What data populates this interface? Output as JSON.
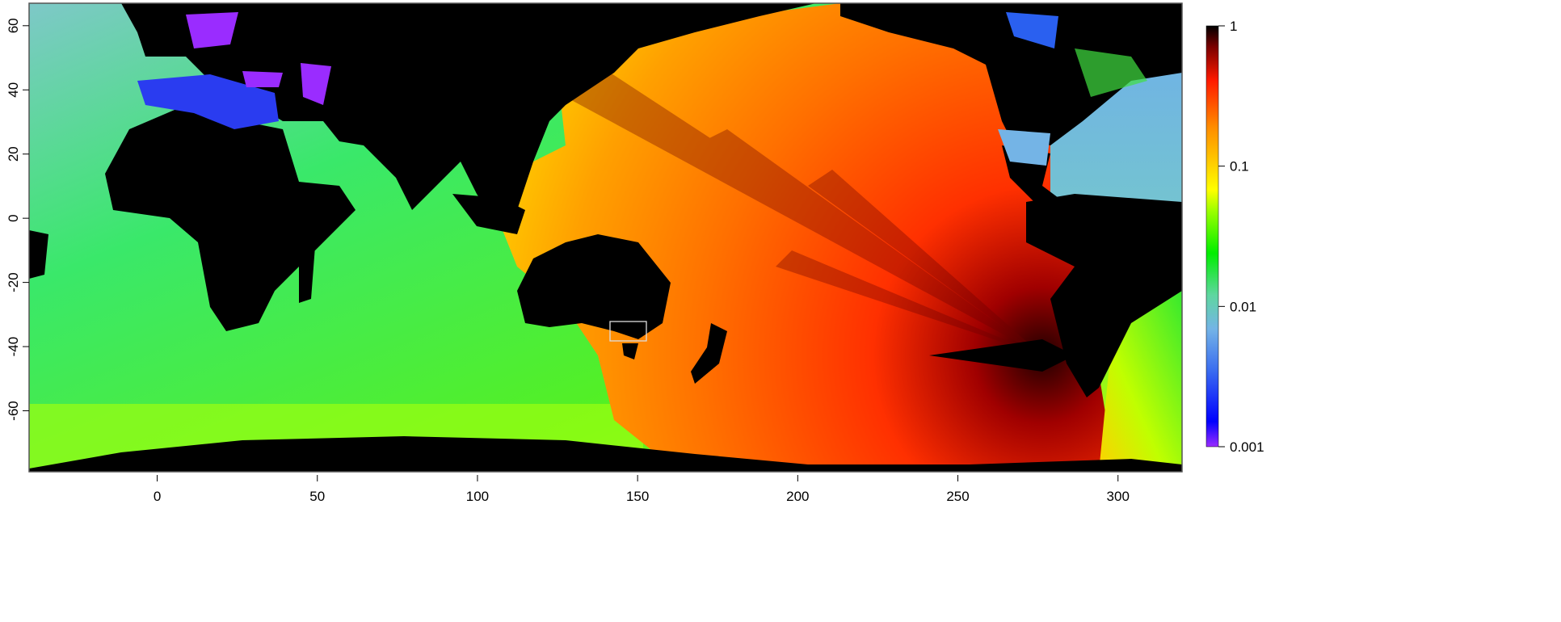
{
  "chart_data": {
    "type": "heatmap",
    "title": "",
    "xlabel": "",
    "ylabel": "",
    "xlim": [
      -40,
      320
    ],
    "ylim": [
      -79,
      67
    ],
    "x_ticks": [
      "0",
      "50",
      "100",
      "150",
      "200",
      "250",
      "300"
    ],
    "x_tick_values": [
      0,
      50,
      100,
      150,
      200,
      250,
      300
    ],
    "y_ticks": [
      "60",
      "40",
      "20",
      "0",
      "-20",
      "-40",
      "-60"
    ],
    "y_tick_values": [
      60,
      40,
      20,
      0,
      -20,
      -40,
      -60
    ],
    "colorbar": {
      "scale": "log",
      "range": [
        0.001,
        1
      ],
      "tick_labels": [
        "1",
        "0.1",
        "0.01",
        "0.001"
      ],
      "tick_values": [
        1,
        0.1,
        0.01,
        0.001
      ],
      "colors": [
        "#000000",
        "#7a0000",
        "#ff1a00",
        "#ff8c00",
        "#ffd000",
        "#ffff00",
        "#9cff00",
        "#00ee00",
        "#5fd6a0",
        "#74b4e6",
        "#2a4dff",
        "#0000ff",
        "#9a2cff"
      ]
    },
    "land_color": "#000000",
    "highlight_box": {
      "lon": [
        142,
        152
      ],
      "lat": [
        -41,
        -32
      ]
    }
  }
}
